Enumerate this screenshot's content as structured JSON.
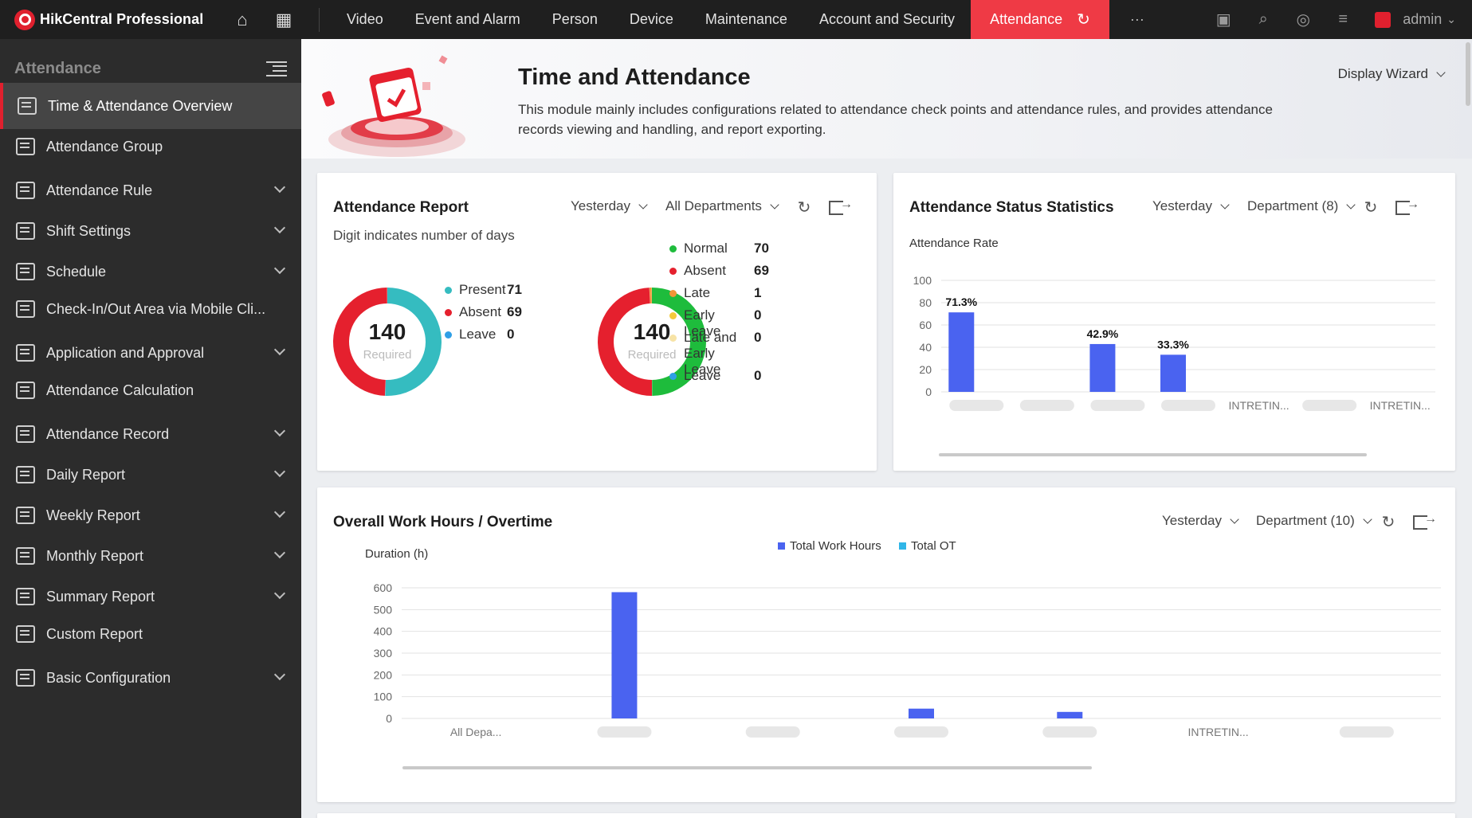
{
  "topbar": {
    "app_name": "HikCentral Professional",
    "nav": [
      "Video",
      "Event and Alarm",
      "Person",
      "Device",
      "Maintenance",
      "Account and Security"
    ],
    "active_tab": "Attendance",
    "more": "···",
    "user": "admin"
  },
  "sidebar": {
    "title": "Attendance",
    "items": [
      {
        "label": "Time & Attendance Overview",
        "expandable": false
      },
      {
        "label": "Attendance Group",
        "expandable": false
      },
      {
        "label": "Attendance Rule",
        "expandable": true
      },
      {
        "label": "Shift Settings",
        "expandable": true
      },
      {
        "label": "Schedule",
        "expandable": true
      },
      {
        "label": "Check-In/Out Area via Mobile Cli...",
        "expandable": false
      },
      {
        "label": "Application and Approval",
        "expandable": true
      },
      {
        "label": "Attendance Calculation",
        "expandable": false
      },
      {
        "label": "Attendance Record",
        "expandable": true
      },
      {
        "label": "Daily Report",
        "expandable": true
      },
      {
        "label": "Weekly Report",
        "expandable": true
      },
      {
        "label": "Monthly Report",
        "expandable": true
      },
      {
        "label": "Summary Report",
        "expandable": true
      },
      {
        "label": "Custom Report",
        "expandable": false
      },
      {
        "label": "Basic Configuration",
        "expandable": true
      }
    ]
  },
  "banner": {
    "title": "Time and Attendance",
    "description": "This module mainly includes configurations related to attendance check points and attendance rules, and provides attendance records viewing and handling, and report exporting.",
    "wizard": "Display Wizard"
  },
  "report": {
    "title": "Attendance Report",
    "subtitle": "Digit indicates number of days",
    "period": "Yesterday",
    "scope": "All Departments",
    "donut1": {
      "total": "140",
      "total_label": "Required",
      "items": [
        {
          "label": "Present",
          "value": "71",
          "color": "#35bcc0"
        },
        {
          "label": "Absent",
          "value": "69",
          "color": "#e5202e"
        },
        {
          "label": "Leave",
          "value": "0",
          "color": "#2f9fe6"
        }
      ]
    },
    "donut2": {
      "total": "140",
      "total_label": "Required",
      "items": [
        {
          "label": "Normal",
          "value": "70",
          "color": "#1ebc3c"
        },
        {
          "label": "Absent",
          "value": "69",
          "color": "#e5202e"
        },
        {
          "label": "Late",
          "value": "1",
          "color": "#f29537"
        },
        {
          "label": "Early Leave",
          "value": "0",
          "color": "#f4c93b"
        },
        {
          "label": "Late and Early Leave",
          "value": "0",
          "color": "#f7e3a6"
        },
        {
          "label": "Leave",
          "value": "0",
          "color": "#2f9fe6"
        }
      ]
    }
  },
  "status": {
    "title": "Attendance Status Statistics",
    "period": "Yesterday",
    "scope": "Department (8)",
    "subtitle": "Attendance Rate"
  },
  "workhours": {
    "title": "Overall Work Hours / Overtime",
    "period": "Yesterday",
    "scope": "Department (10)"
  },
  "chart_data": [
    {
      "type": "bar",
      "ylabel": "Attendance Rate",
      "ylim": [
        0,
        100
      ],
      "yticks": [
        0,
        20,
        40,
        60,
        80,
        100
      ],
      "grid": true,
      "categories": [
        "",
        "",
        "",
        "",
        "INTRETIN...",
        "",
        "INTRETIN..."
      ],
      "values": [
        71.3,
        0,
        42.9,
        33.3,
        0,
        0,
        0
      ],
      "data_labels": [
        "71.3%",
        "",
        "42.9%",
        "33.3%",
        "",
        "",
        ""
      ],
      "color": "#4a63f0"
    },
    {
      "type": "bar",
      "ylabel": "Duration (h)",
      "ylim": [
        0,
        600
      ],
      "yticks": [
        0,
        100,
        200,
        300,
        400,
        500,
        600
      ],
      "grid": true,
      "legend_position": "top",
      "categories": [
        "All Depa...",
        "",
        "",
        "",
        "",
        "INTRETIN...",
        ""
      ],
      "series": [
        {
          "name": "Total Work Hours",
          "color": "#4a63f0",
          "values": [
            0,
            580,
            0,
            45,
            30,
            0,
            0
          ]
        },
        {
          "name": "Total OT",
          "color": "#30b6e8",
          "values": [
            0,
            0,
            0,
            0,
            0,
            0,
            0
          ]
        }
      ]
    }
  ]
}
